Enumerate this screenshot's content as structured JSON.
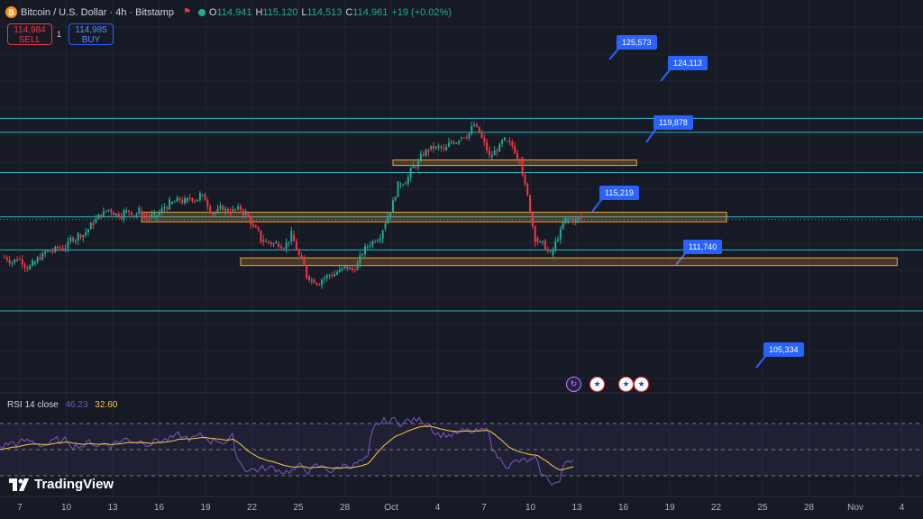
{
  "header": {
    "symbol_icon": "B",
    "title": "Bitcoin / U.S. Dollar · 4h · Bitstamp",
    "open": "114,941",
    "high": "115,120",
    "low": "114,513",
    "close": "114,961",
    "change": "+19 (+0.02%)",
    "labels": {
      "o": "O",
      "h": "H",
      "l": "L",
      "c": "C"
    }
  },
  "trade": {
    "sell_price": "114,984",
    "sell_label": "SELL",
    "spread": "1",
    "buy_price": "114,985",
    "buy_label": "BUY"
  },
  "levels": [
    {
      "price": 125573,
      "label": "125,573",
      "color": "#2bb6c8"
    },
    {
      "price": 124113,
      "label": "124,113",
      "color": "#2bb6c8"
    },
    {
      "price": 119878,
      "label": "119,878",
      "color": "#2bb6c8"
    },
    {
      "price": 115219,
      "label": "115,219",
      "color": "#2bb6c8"
    },
    {
      "price": 111740,
      "label": "111,740",
      "color": "#2bb6c8"
    },
    {
      "price": 105334,
      "label": "105,334",
      "color": "#2bb6c8"
    }
  ],
  "zones": [
    {
      "top": 121200,
      "bottom": 120700,
      "from": "Oct 1",
      "to": "Oct 17"
    },
    {
      "top": 115700,
      "bottom": 114700,
      "from": "Sep 15",
      "to": "Oct 23"
    },
    {
      "top": 110900,
      "bottom": 110100,
      "from": "Sep 21",
      "to": "Nov 4"
    }
  ],
  "rsi": {
    "label": "RSI 14 close",
    "value": "46.23",
    "ma_value": "32.60",
    "upper": 70,
    "lower": 30,
    "middle": 50
  },
  "x_axis": {
    "ticks": [
      "7",
      "10",
      "13",
      "16",
      "19",
      "22",
      "25",
      "28",
      "Oct",
      "4",
      "7",
      "10",
      "13",
      "16",
      "19",
      "22",
      "25",
      "28",
      "Nov",
      "4"
    ]
  },
  "footer": {
    "brand": "TradingView",
    "logo_icon": "tradingview-logo-icon"
  },
  "events": [
    "crypto-event-icon",
    "us-flag-icon",
    "us-flag-icon",
    "us-flag-icon"
  ],
  "colors": {
    "up": "#22ab94",
    "down": "#f23645",
    "zone": "#f0a93a",
    "rsi": "#7e57c2",
    "rsi_ma": "#f7c948"
  },
  "chart_data": {
    "type": "candlestick",
    "timeframe": "4h",
    "series": [
      {
        "date": "2025-09-06",
        "close": 110800
      },
      {
        "date": "2025-09-07",
        "close": 110200
      },
      {
        "date": "2025-09-08",
        "close": 111600
      },
      {
        "date": "2025-09-09",
        "close": 111900
      },
      {
        "date": "2025-09-10",
        "close": 113300
      },
      {
        "date": "2025-09-11",
        "close": 114600
      },
      {
        "date": "2025-09-12",
        "close": 116000
      },
      {
        "date": "2025-09-13",
        "close": 115700
      },
      {
        "date": "2025-09-14",
        "close": 115800
      },
      {
        "date": "2025-09-15",
        "close": 115200
      },
      {
        "date": "2025-09-16",
        "close": 116600
      },
      {
        "date": "2025-09-17",
        "close": 116800
      },
      {
        "date": "2025-09-18",
        "close": 117500
      },
      {
        "date": "2025-09-19",
        "close": 115700
      },
      {
        "date": "2025-09-20",
        "close": 115800
      },
      {
        "date": "2025-09-21",
        "close": 115600
      },
      {
        "date": "2025-09-22",
        "close": 112800
      },
      {
        "date": "2025-09-23",
        "close": 112400
      },
      {
        "date": "2025-09-24",
        "close": 113300
      },
      {
        "date": "2025-09-25",
        "close": 109000
      },
      {
        "date": "2025-09-26",
        "close": 108700
      },
      {
        "date": "2025-09-27",
        "close": 109400
      },
      {
        "date": "2025-09-28",
        "close": 109600
      },
      {
        "date": "2025-09-29",
        "close": 112200
      },
      {
        "date": "2025-09-30",
        "close": 114000
      },
      {
        "date": "2025-10-01",
        "close": 118500
      },
      {
        "date": "2025-10-02",
        "close": 120500
      },
      {
        "date": "2025-10-03",
        "close": 122300
      },
      {
        "date": "2025-10-04",
        "close": 122200
      },
      {
        "date": "2025-10-05",
        "close": 123500
      },
      {
        "date": "2025-10-06",
        "close": 124900
      },
      {
        "date": "2025-10-07",
        "close": 121500
      },
      {
        "date": "2025-10-08",
        "close": 123200
      },
      {
        "date": "2025-10-09",
        "close": 121400
      },
      {
        "date": "2025-10-10",
        "close": 113000
      },
      {
        "date": "2025-10-11",
        "close": 111200
      },
      {
        "date": "2025-10-12",
        "close": 114900
      },
      {
        "date": "2025-10-13",
        "close": 114961
      }
    ]
  }
}
